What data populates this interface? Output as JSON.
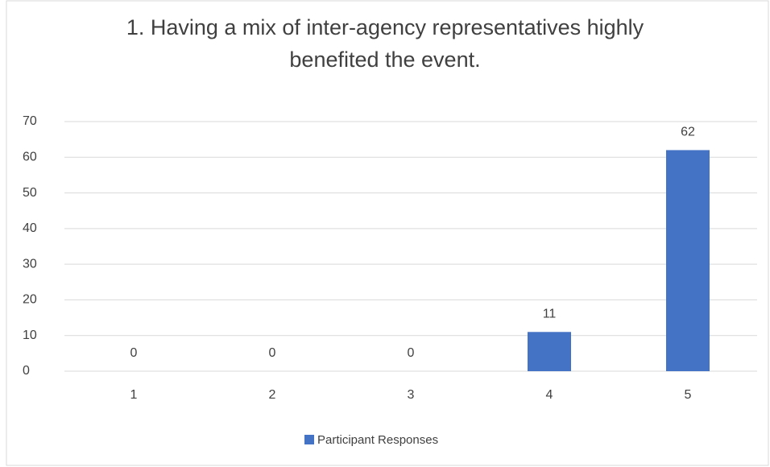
{
  "chart_data": {
    "type": "bar",
    "title": "1. Having a mix of inter-agency representatives highly benefited the event.",
    "categories": [
      "1",
      "2",
      "3",
      "4",
      "5"
    ],
    "series": [
      {
        "name": "Participant Responses",
        "color": "#4472c4",
        "values": [
          0,
          0,
          0,
          11,
          62
        ]
      }
    ],
    "ylim": [
      0,
      70
    ],
    "yticks": [
      0,
      10,
      20,
      30,
      40,
      50,
      60,
      70
    ],
    "grid": true,
    "legend": "bottom"
  }
}
